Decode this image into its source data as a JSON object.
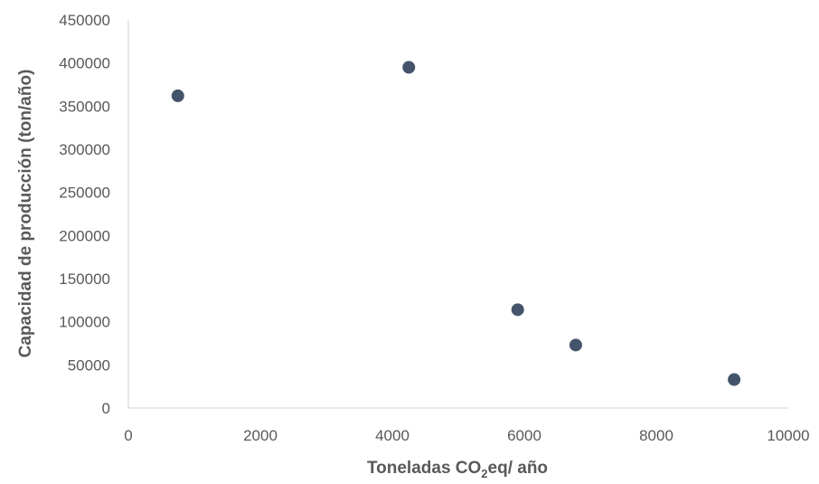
{
  "chart_data": {
    "type": "scatter",
    "title": "",
    "xlabel_parts": [
      "Toneladas CO",
      "2",
      "eq/ año"
    ],
    "ylabel": "Capacidad de producción (ton/año)",
    "xlim": [
      0,
      10000
    ],
    "ylim": [
      0,
      450000
    ],
    "x_ticks": [
      0,
      2000,
      4000,
      6000,
      8000,
      10000
    ],
    "y_ticks": [
      0,
      50000,
      100000,
      150000,
      200000,
      250000,
      300000,
      350000,
      400000,
      450000
    ],
    "grid": false,
    "legend": "none",
    "marker_color": "#44546a",
    "axis_color": "#d9d9d9",
    "series": [
      {
        "points": [
          {
            "x": 750,
            "y": 362000
          },
          {
            "x": 4250,
            "y": 395000
          },
          {
            "x": 5900,
            "y": 114000
          },
          {
            "x": 6780,
            "y": 73000
          },
          {
            "x": 9180,
            "y": 33000
          }
        ]
      }
    ]
  }
}
